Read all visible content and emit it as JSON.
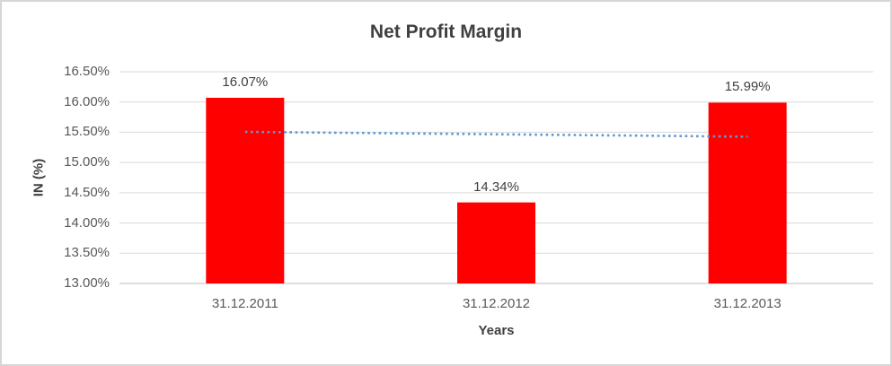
{
  "window": {
    "background": "#FFFFFF",
    "border_color": "#D6D6D6"
  },
  "chart_data": {
    "type": "bar",
    "title": "Net Profit Margin",
    "xlabel": "Years",
    "ylabel": "IN (%)",
    "categories": [
      "31.12.2011",
      "31.12.2012",
      "31.12.2013"
    ],
    "values": [
      16.07,
      14.34,
      15.99
    ],
    "data_labels": [
      "16.07%",
      "14.34%",
      "15.99%"
    ],
    "bar_color": "#FF0000",
    "ylim": [
      13.0,
      16.5
    ],
    "ytick_values": [
      16.5,
      16.0,
      15.5,
      15.0,
      14.5,
      14.0,
      13.5,
      13.0
    ],
    "ytick_labels": [
      "16.50%",
      "16.00%",
      "15.50%",
      "15.00%",
      "14.50%",
      "14.00%",
      "13.50%",
      "13.00%"
    ],
    "grid": "horizontal",
    "gridline_color": "#D9D9D9",
    "axis_line_color": "#BFBFBF",
    "legend": "none",
    "trendline": {
      "type": "linear",
      "style": "dotted",
      "color": "#5B9BD5",
      "start_value": 15.51,
      "end_value": 15.43
    },
    "text_colors": {
      "title": "#404040",
      "ticks": "#595959",
      "data_labels": "#404040",
      "axis_titles": "#404040"
    }
  }
}
